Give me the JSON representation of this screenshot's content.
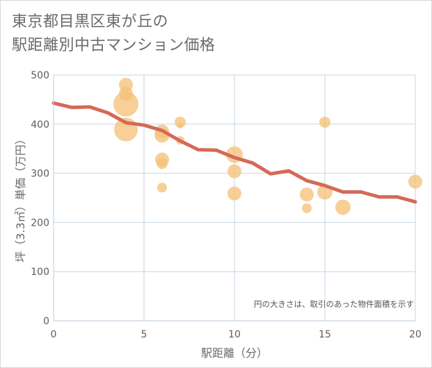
{
  "page": {
    "title_line1": "東京都目黒区東が丘の",
    "title_line2": "駅距離別中古マンション価格"
  },
  "chart_data": {
    "type": "scatter",
    "title": "東京都目黒区東が丘の駅距離別中古マンション価格",
    "xlabel": "駅距離（分）",
    "ylabel": "坪（3.3㎡）単価（万円）",
    "xlim": [
      0,
      20
    ],
    "ylim": [
      0,
      500
    ],
    "xticks": [
      0,
      5,
      10,
      15,
      20
    ],
    "yticks": [
      0,
      100,
      200,
      300,
      400,
      500
    ],
    "grid": true,
    "note": "円の大きさは、取引のあった物件面積を示す",
    "colors": {
      "bubble": "#f5c27a",
      "line": "#d46a57",
      "axis_text": "#5c5c5c",
      "grid": "#c6d6e4"
    },
    "scatter": [
      {
        "x": 4,
        "y": 480,
        "size": 10
      },
      {
        "x": 4,
        "y": 462,
        "size": 10
      },
      {
        "x": 4,
        "y": 441,
        "size": 18
      },
      {
        "x": 4,
        "y": 389,
        "size": 17
      },
      {
        "x": 6,
        "y": 385,
        "size": 10
      },
      {
        "x": 6,
        "y": 378,
        "size": 11
      },
      {
        "x": 6,
        "y": 328,
        "size": 10
      },
      {
        "x": 6,
        "y": 320,
        "size": 8
      },
      {
        "x": 6,
        "y": 271,
        "size": 7
      },
      {
        "x": 7,
        "y": 404,
        "size": 8
      },
      {
        "x": 7,
        "y": 397,
        "size": 4
      },
      {
        "x": 7,
        "y": 367,
        "size": 6
      },
      {
        "x": 10,
        "y": 338,
        "size": 12
      },
      {
        "x": 10,
        "y": 304,
        "size": 10
      },
      {
        "x": 10,
        "y": 259,
        "size": 10
      },
      {
        "x": 14,
        "y": 257,
        "size": 10
      },
      {
        "x": 14,
        "y": 229,
        "size": 7
      },
      {
        "x": 15,
        "y": 404,
        "size": 8
      },
      {
        "x": 15,
        "y": 262,
        "size": 11
      },
      {
        "x": 16,
        "y": 231,
        "size": 11
      },
      {
        "x": 20,
        "y": 283,
        "size": 10
      }
    ],
    "trend": {
      "x": [
        0,
        1,
        2,
        3,
        4,
        5,
        6,
        7,
        8,
        9,
        10,
        11,
        12,
        13,
        14,
        15,
        16,
        17,
        18,
        19,
        20
      ],
      "y": [
        443,
        434,
        435,
        423,
        403,
        398,
        387,
        366,
        348,
        347,
        332,
        321,
        299,
        305,
        285,
        275,
        262,
        262,
        252,
        252,
        242
      ]
    }
  }
}
